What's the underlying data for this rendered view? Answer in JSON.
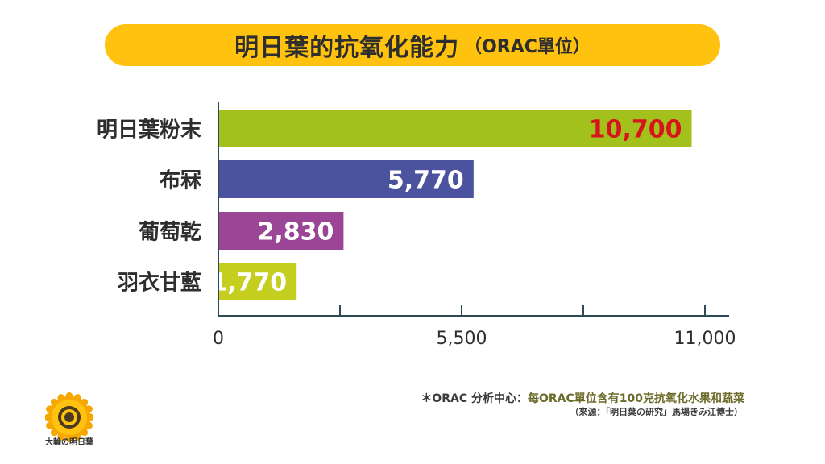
{
  "title": {
    "main": "明日葉的抗氧化能力",
    "sub": "（ORAC單位）"
  },
  "chart_data": {
    "type": "bar",
    "orientation": "horizontal",
    "categories": [
      "明日葉粉末",
      "布冧",
      "葡萄乾",
      "羽衣甘藍"
    ],
    "values": [
      10700,
      5770,
      2830,
      1770
    ],
    "value_labels": [
      "10,700",
      "5,770",
      "2,830",
      "1,770"
    ],
    "colors": [
      "#A2C11C",
      "#4B539E",
      "#9B4596",
      "#C4CF1F"
    ],
    "label_colors": [
      "#D7141B",
      "#FFFFFF",
      "#FFFFFF",
      "#FFFFFF"
    ],
    "xlim": [
      0,
      11000
    ],
    "xticks": [
      0,
      2750,
      5500,
      8250,
      11000
    ],
    "xtick_labels": [
      "0",
      "",
      "5,500",
      "",
      "11,000"
    ],
    "title": "明日葉的抗氧化能力（ORAC單位）",
    "xlabel": "",
    "ylabel": ""
  },
  "footnote": {
    "prefix": "＊ORAC 分析中心：",
    "text": "每ORAC單位含有100克抗氧化水果和蔬菜"
  },
  "source": "（來源：「明日葉の研究」馬場きみ江博士）",
  "logo": {
    "icon": "sunflower-icon",
    "text": "大輪の明日葉"
  }
}
